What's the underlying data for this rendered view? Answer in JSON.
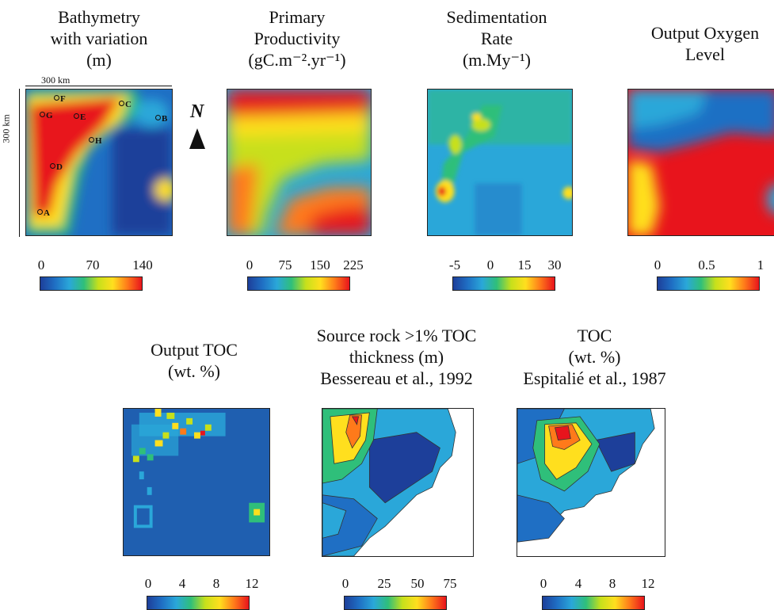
{
  "panels": [
    {
      "title": [
        "Bathymetry",
        "with variation",
        "(m)"
      ],
      "ticks": [
        "0",
        "70",
        "140"
      ]
    },
    {
      "title": [
        "Primary",
        "Productivity",
        "(gC.m⁻².yr⁻¹)"
      ],
      "ticks": [
        "0",
        "75",
        "150",
        "225"
      ]
    },
    {
      "title": [
        "Sedimentation",
        "Rate",
        "(m.My⁻¹)"
      ],
      "ticks": [
        "-5",
        "0",
        "15",
        "30"
      ]
    },
    {
      "title": [
        "Output Oxygen",
        "Level"
      ],
      "ticks": [
        "0",
        "0.5",
        "1"
      ]
    },
    {
      "title": [
        "Output TOC",
        "(wt. %)"
      ],
      "ticks": [
        "0",
        "4",
        "8",
        "12"
      ]
    },
    {
      "title": [
        "Source rock >1% TOC",
        "thickness (m)",
        "Bessereau et al., 1992"
      ],
      "ticks": [
        "0",
        "25",
        "50",
        "75"
      ]
    },
    {
      "title": [
        "TOC",
        "(wt. %)",
        "Espitalié et al., 1987"
      ],
      "ticks": [
        "0",
        "4",
        "8",
        "12"
      ]
    }
  ],
  "scale": {
    "width": "300 km",
    "height": "300 km"
  },
  "north": "N",
  "sites": [
    "A",
    "B",
    "C",
    "D",
    "E",
    "F",
    "G",
    "H"
  ],
  "palette": [
    "#1d3f9a",
    "#1f6fc4",
    "#2aa7d9",
    "#2fbf7a",
    "#c7e01b",
    "#ffdf1e",
    "#ff7a1a",
    "#e8141c"
  ]
}
